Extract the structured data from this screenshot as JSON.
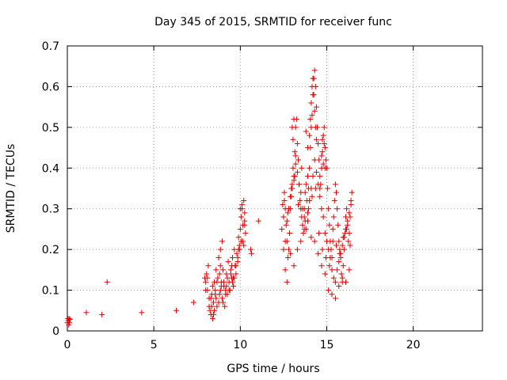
{
  "chart_data": {
    "type": "scatter",
    "title": "Day 345 of 2015, SRMTID for receiver func",
    "xlabel": "GPS time / hours",
    "ylabel": "SRMTID / TECUs",
    "xlim": [
      0,
      24
    ],
    "ylim": [
      0,
      0.7
    ],
    "xticks": [
      0,
      5,
      10,
      15,
      20
    ],
    "yticks": [
      0,
      0.1,
      0.2,
      0.3,
      0.4,
      0.5,
      0.6,
      0.7
    ],
    "xtick_labels": [
      "0",
      "5",
      "10",
      "15",
      "20"
    ],
    "ytick_labels": [
      "0",
      "0.1",
      "0.2",
      "0.3",
      "0.4",
      "0.5",
      "0.6",
      "0.7"
    ],
    "grid": true,
    "marker": "+",
    "color": "#e00000",
    "series": [
      {
        "name": "SRMTID",
        "x": [
          0.0,
          0.03,
          0.05,
          0.08,
          0.1,
          0.12,
          0.15,
          1.1,
          2.0,
          2.3,
          4.3,
          6.3,
          7.3,
          7.95,
          8.0,
          8.05,
          8.1,
          8.15,
          8.2,
          8.25,
          8.3,
          8.3,
          8.35,
          8.4,
          8.4,
          8.45,
          8.5,
          8.5,
          8.55,
          8.6,
          8.6,
          8.65,
          8.7,
          8.75,
          8.8,
          8.85,
          8.9,
          8.95,
          9.0,
          9.0,
          9.05,
          9.1,
          9.15,
          9.2,
          9.25,
          9.3,
          9.35,
          9.4,
          9.45,
          9.5,
          9.55,
          9.6,
          9.65,
          9.7,
          9.75,
          9.8,
          9.85,
          9.9,
          9.95,
          10.0,
          10.05,
          10.1,
          10.15,
          10.2,
          10.25,
          10.3,
          10.6,
          10.65,
          11.05,
          8.0,
          8.1,
          8.2,
          8.35,
          8.45,
          8.55,
          8.65,
          8.75,
          8.85,
          8.95,
          9.05,
          9.15,
          9.25,
          9.35,
          9.45,
          9.55,
          9.65,
          9.75,
          9.85,
          9.95,
          10.05,
          10.15,
          10.25,
          8.8,
          8.85,
          8.9,
          9.2,
          9.5,
          9.6,
          9.9,
          10.0,
          10.1,
          10.2,
          10.25,
          12.4,
          12.45,
          12.5,
          12.55,
          12.6,
          12.65,
          12.7,
          12.75,
          12.8,
          12.85,
          12.9,
          12.95,
          13.0,
          13.05,
          13.1,
          13.15,
          13.2,
          13.25,
          13.3,
          13.35,
          13.4,
          13.45,
          13.5,
          13.55,
          13.6,
          13.65,
          13.7,
          13.75,
          13.8,
          13.85,
          13.9,
          13.95,
          14.0,
          14.05,
          14.1,
          14.15,
          14.2,
          14.25,
          14.3,
          14.35,
          14.4,
          14.45,
          14.5,
          14.55,
          14.6,
          14.65,
          14.7,
          14.75,
          14.8,
          14.85,
          14.9,
          14.95,
          15.0,
          15.05,
          15.1,
          15.15,
          15.2,
          15.25,
          15.3,
          15.35,
          15.4,
          15.45,
          15.5,
          15.55,
          15.6,
          15.65,
          15.7,
          15.75,
          15.8,
          15.85,
          15.9,
          15.95,
          16.0,
          16.05,
          16.1,
          16.15,
          16.2,
          16.25,
          16.3,
          16.35,
          16.4,
          16.45,
          12.5,
          12.6,
          12.7,
          12.8,
          12.9,
          13.0,
          13.1,
          13.2,
          13.3,
          13.4,
          13.5,
          13.6,
          13.7,
          13.8,
          13.9,
          14.0,
          14.1,
          14.2,
          14.3,
          14.4,
          14.5,
          14.6,
          14.7,
          14.8,
          14.9,
          15.0,
          15.1,
          15.2,
          15.3,
          15.4,
          15.5,
          15.6,
          15.7,
          15.8,
          15.9,
          16.0,
          16.1,
          16.2,
          16.3,
          16.4,
          13.0,
          13.05,
          13.1,
          13.2,
          13.8,
          13.9,
          14.0,
          14.05,
          14.1,
          14.15,
          14.2,
          14.25,
          14.3,
          14.35,
          14.4,
          14.6,
          14.7,
          14.75,
          14.8,
          14.85,
          14.9,
          12.6,
          12.7,
          12.9,
          13.1,
          13.3,
          13.5,
          13.7,
          13.9,
          14.1,
          14.3,
          14.5,
          14.7,
          14.9,
          15.1,
          15.3,
          15.5,
          15.7,
          15.9,
          16.1,
          16.3,
          12.55,
          12.75,
          12.95,
          13.15,
          13.35,
          13.55,
          13.75,
          13.95,
          14.15,
          14.35,
          14.55,
          14.75,
          14.95,
          15.15,
          15.35,
          15.55,
          15.75,
          15.95,
          16.15,
          16.35
        ],
        "y": [
          0.02,
          0.03,
          0.025,
          0.015,
          0.03,
          0.02,
          0.028,
          0.045,
          0.04,
          0.12,
          0.045,
          0.05,
          0.07,
          0.13,
          0.12,
          0.14,
          0.1,
          0.16,
          0.06,
          0.05,
          0.08,
          0.04,
          0.09,
          0.03,
          0.11,
          0.07,
          0.12,
          0.05,
          0.1,
          0.08,
          0.15,
          0.06,
          0.13,
          0.18,
          0.09,
          0.2,
          0.11,
          0.22,
          0.07,
          0.15,
          0.12,
          0.06,
          0.1,
          0.14,
          0.09,
          0.17,
          0.12,
          0.1,
          0.15,
          0.13,
          0.18,
          0.11,
          0.2,
          0.16,
          0.14,
          0.19,
          0.17,
          0.23,
          0.21,
          0.25,
          0.28,
          0.3,
          0.22,
          0.32,
          0.27,
          0.24,
          0.2,
          0.19,
          0.27,
          0.1,
          0.13,
          0.08,
          0.06,
          0.04,
          0.09,
          0.12,
          0.07,
          0.1,
          0.08,
          0.11,
          0.09,
          0.13,
          0.1,
          0.14,
          0.12,
          0.13,
          0.16,
          0.18,
          0.2,
          0.22,
          0.26,
          0.29,
          0.14,
          0.16,
          0.12,
          0.11,
          0.16,
          0.13,
          0.2,
          0.3,
          0.31,
          0.21,
          0.26,
          0.25,
          0.31,
          0.28,
          0.34,
          0.3,
          0.26,
          0.22,
          0.18,
          0.2,
          0.24,
          0.3,
          0.33,
          0.36,
          0.4,
          0.38,
          0.44,
          0.5,
          0.52,
          0.46,
          0.42,
          0.36,
          0.32,
          0.3,
          0.28,
          0.26,
          0.24,
          0.3,
          0.34,
          0.36,
          0.32,
          0.38,
          0.35,
          0.4,
          0.45,
          0.5,
          0.53,
          0.58,
          0.62,
          0.64,
          0.6,
          0.55,
          0.5,
          0.46,
          0.42,
          0.38,
          0.36,
          0.4,
          0.44,
          0.48,
          0.5,
          0.45,
          0.42,
          0.4,
          0.35,
          0.3,
          0.26,
          0.22,
          0.2,
          0.18,
          0.22,
          0.28,
          0.32,
          0.36,
          0.34,
          0.3,
          0.26,
          0.22,
          0.2,
          0.18,
          0.14,
          0.12,
          0.16,
          0.2,
          0.24,
          0.28,
          0.3,
          0.26,
          0.22,
          0.24,
          0.28,
          0.32,
          0.34,
          0.2,
          0.22,
          0.27,
          0.3,
          0.33,
          0.35,
          0.37,
          0.41,
          0.39,
          0.36,
          0.34,
          0.3,
          0.28,
          0.25,
          0.29,
          0.32,
          0.35,
          0.38,
          0.42,
          0.39,
          0.36,
          0.33,
          0.3,
          0.28,
          0.24,
          0.22,
          0.2,
          0.18,
          0.15,
          0.13,
          0.12,
          0.15,
          0.17,
          0.19,
          0.21,
          0.23,
          0.25,
          0.27,
          0.29,
          0.31,
          0.5,
          0.47,
          0.52,
          0.43,
          0.49,
          0.45,
          0.48,
          0.52,
          0.56,
          0.6,
          0.62,
          0.58,
          0.54,
          0.5,
          0.47,
          0.35,
          0.43,
          0.47,
          0.41,
          0.46,
          0.4,
          0.15,
          0.12,
          0.19,
          0.16,
          0.2,
          0.22,
          0.25,
          0.27,
          0.23,
          0.22,
          0.19,
          0.16,
          0.14,
          0.1,
          0.09,
          0.08,
          0.11,
          0.13,
          0.12,
          0.15,
          0.32,
          0.29,
          0.35,
          0.38,
          0.31,
          0.4,
          0.27,
          0.3,
          0.33,
          0.35,
          0.24,
          0.2,
          0.18,
          0.16,
          0.25,
          0.21,
          0.19,
          0.23,
          0.25,
          0.21
        ]
      }
    ]
  }
}
